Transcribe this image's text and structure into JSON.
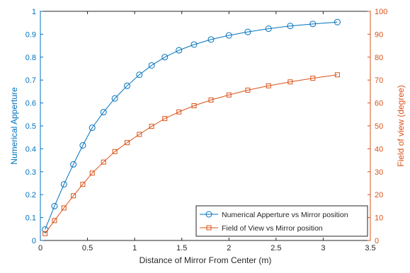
{
  "chart_data": {
    "type": "line",
    "xlabel": "Distance of Mirror From Center (m)",
    "xlim": [
      0,
      3.5
    ],
    "xticks": [
      0,
      0.5,
      1,
      1.5,
      2,
      2.5,
      3,
      3.5
    ],
    "xtick_labels": [
      "0",
      "0.5",
      "1",
      "1.5",
      "2",
      "2.5",
      "3",
      "3.5"
    ],
    "y_left": {
      "label": "Numerical Apperture",
      "lim": [
        0,
        1
      ],
      "ticks": [
        0,
        0.1,
        0.2,
        0.3,
        0.4,
        0.5,
        0.6,
        0.7,
        0.8,
        0.9,
        1
      ],
      "tick_labels": [
        "0",
        "0.1",
        "0.2",
        "0.3",
        "0.4",
        "0.5",
        "0.6",
        "0.7",
        "0.8",
        "0.9",
        "1"
      ],
      "color": "#0072BD"
    },
    "y_right": {
      "label": "Field of view (degree)",
      "lim": [
        0,
        100
      ],
      "ticks": [
        0,
        10,
        20,
        30,
        40,
        50,
        60,
        70,
        80,
        90,
        100
      ],
      "tick_labels": [
        "0",
        "10",
        "20",
        "30",
        "40",
        "50",
        "60",
        "70",
        "80",
        "90",
        "100"
      ],
      "color": "#D95319"
    },
    "series": [
      {
        "name": "Numerical Apperture vs Mirror position",
        "axis": "left",
        "marker": "circle",
        "color": "#0072BD",
        "x": [
          0.05,
          0.15,
          0.25,
          0.35,
          0.45,
          0.55,
          0.67,
          0.79,
          0.92,
          1.05,
          1.18,
          1.32,
          1.47,
          1.63,
          1.81,
          2.0,
          2.2,
          2.42,
          2.65,
          2.89,
          3.15
        ],
        "y": [
          0.048,
          0.15,
          0.245,
          0.332,
          0.415,
          0.492,
          0.56,
          0.62,
          0.675,
          0.723,
          0.764,
          0.8,
          0.83,
          0.855,
          0.877,
          0.895,
          0.91,
          0.924,
          0.936,
          0.945,
          0.953
        ]
      },
      {
        "name": "Field of View vs Mirror position",
        "axis": "right",
        "marker": "square",
        "color": "#D95319",
        "x": [
          0.05,
          0.15,
          0.25,
          0.35,
          0.45,
          0.55,
          0.67,
          0.79,
          0.92,
          1.05,
          1.18,
          1.32,
          1.47,
          1.63,
          1.81,
          2.0,
          2.2,
          2.42,
          2.65,
          2.89,
          3.15
        ],
        "y": [
          3,
          8.7,
          14.2,
          19.5,
          24.5,
          29.4,
          34.2,
          38.8,
          42.7,
          46.3,
          49.8,
          53.2,
          56.1,
          58.8,
          61.3,
          63.5,
          65.6,
          67.5,
          69.2,
          70.8,
          72.3
        ]
      }
    ],
    "legend_position": "bottom-right",
    "grid": false
  }
}
